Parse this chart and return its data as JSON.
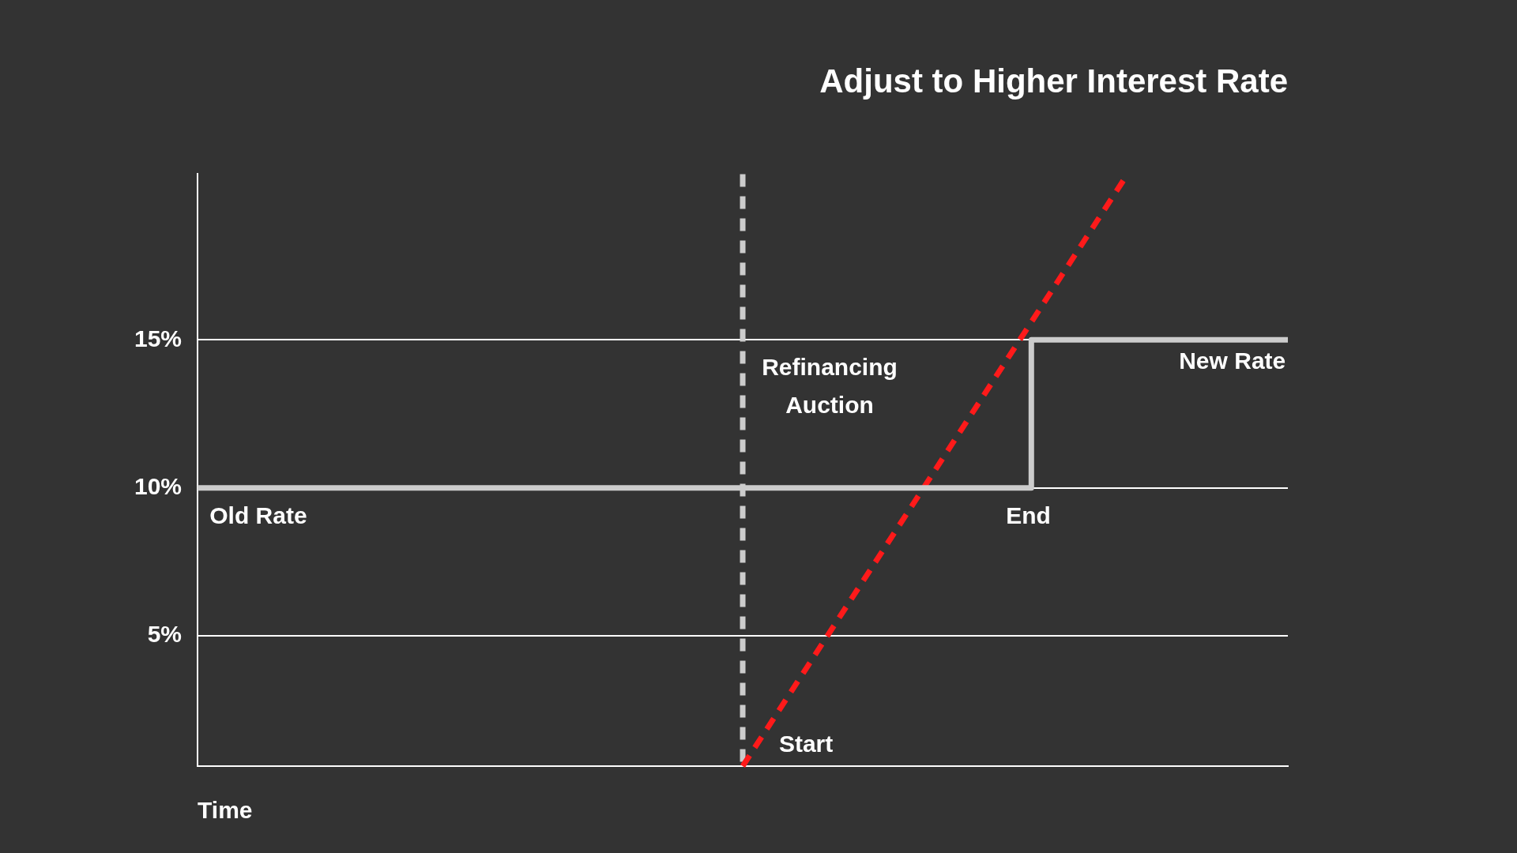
{
  "chart_data": {
    "type": "line",
    "title": "Adjust to Higher Interest Rate",
    "xlabel": "Time",
    "categories": [
      null,
      null,
      null,
      null,
      null,
      null,
      null,
      null,
      null,
      null,
      null,
      null,
      null,
      null,
      null,
      null,
      null,
      null,
      null,
      null,
      null,
      null,
      null,
      null,
      null,
      null,
      null,
      null,
      null,
      null,
      null,
      null,
      null,
      null,
      null
    ],
    "ylim": [
      0.6,
      20.6
    ],
    "yticks": [
      {
        "value": 5,
        "label": "5%"
      },
      {
        "value": 10,
        "label": "10%"
      },
      {
        "value": 15,
        "label": "15%"
      }
    ],
    "tick_labels": "y",
    "grid": "y",
    "legend": false,
    "marker": "none",
    "series": [
      {
        "type": "step",
        "color": "#cccccc",
        "values": [
          10,
          10,
          10,
          10,
          10,
          10,
          10,
          10,
          10,
          10,
          10,
          10,
          10,
          10,
          10,
          10,
          10,
          10,
          10,
          10,
          10,
          10,
          10,
          10,
          10,
          10,
          15,
          15,
          15,
          15,
          15,
          15,
          15,
          15,
          15
        ]
      },
      {
        "color": "#ff1a1a",
        "line_style": "dashed",
        "values": [
          null,
          null,
          null,
          null,
          null,
          null,
          null,
          null,
          null,
          null,
          null,
          null,
          null,
          null,
          null,
          null,
          null,
          0.6,
          null,
          null,
          null,
          null,
          null,
          null,
          null,
          null,
          null,
          null,
          null,
          20.6,
          null,
          null,
          null,
          null,
          null
        ]
      }
    ],
    "ref_lines": [
      {
        "axis": "x",
        "label": "Refinancing Auction",
        "color": "#cccccc",
        "line_style": "dashed"
      }
    ],
    "annotations": [
      "Old Rate",
      "End",
      "New Rate",
      "Start"
    ]
  }
}
